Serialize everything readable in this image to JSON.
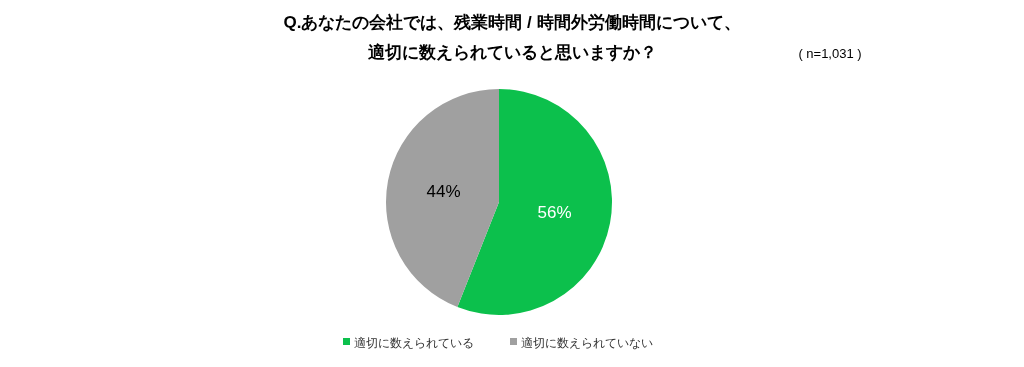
{
  "chart_data": {
    "type": "pie",
    "title": "Q.あなたの会社では、残業時間 / 時間外労働時間について、",
    "subtitle": "適切に数えられていると思いますか？",
    "annotations": [
      "( n=1,031 )"
    ],
    "categories": [
      "適切に数えられている",
      "適切に数えられていない"
    ],
    "values": [
      56,
      44
    ],
    "value_labels": [
      "56%",
      "44%"
    ],
    "colors": [
      "#0cc04c",
      "#a0a0a0"
    ],
    "legend": "bottom"
  }
}
